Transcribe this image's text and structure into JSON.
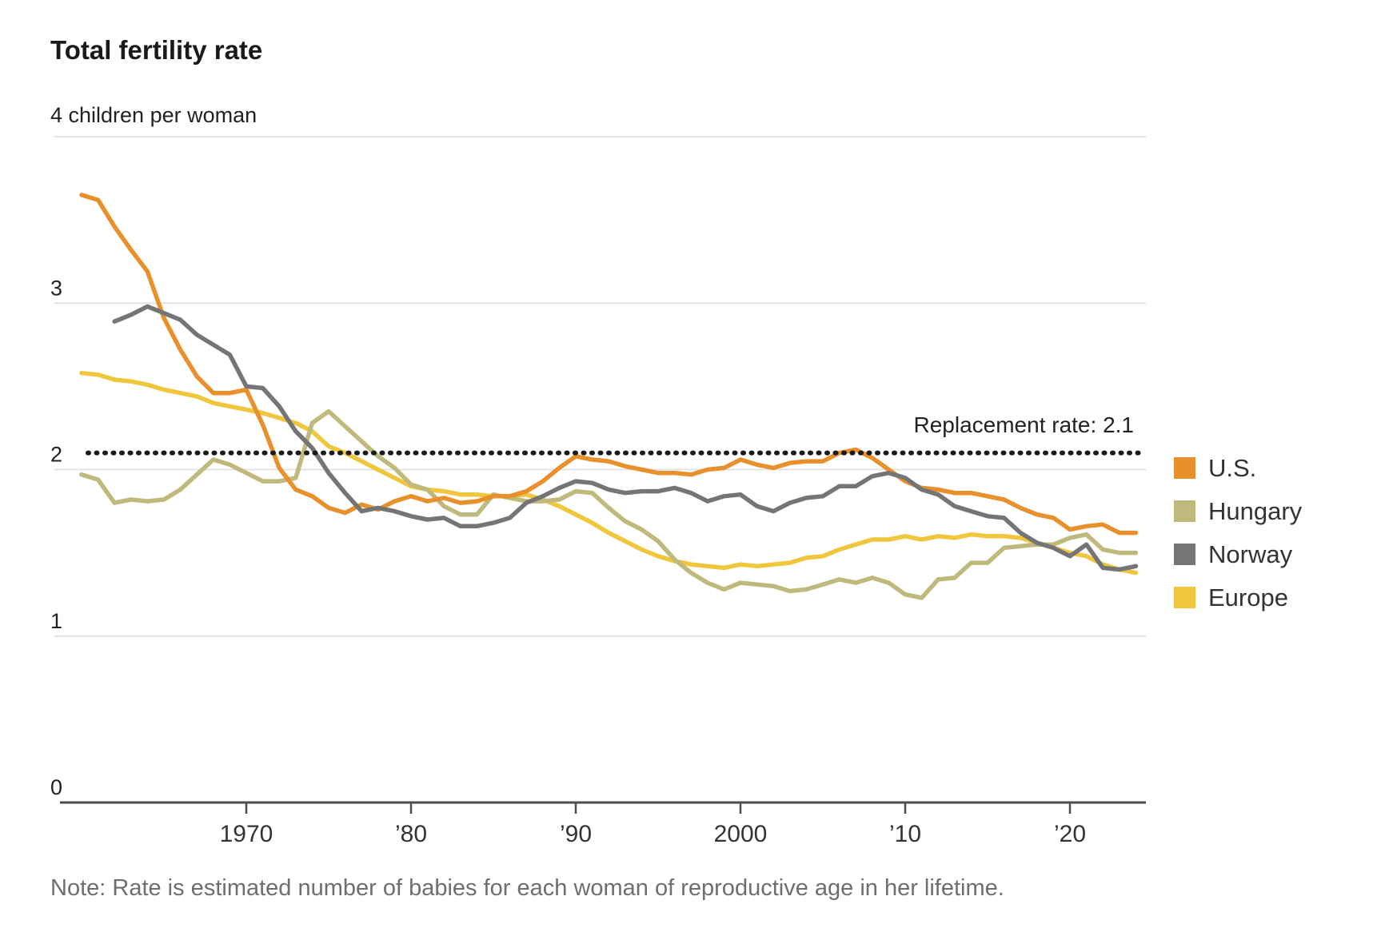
{
  "chart_data": {
    "type": "line",
    "title": "Total fertility rate",
    "unit_label": "4 children per woman",
    "note": "Note: Rate is estimated number of babies for each woman of reproductive age in her lifetime.",
    "x": [
      1960,
      1961,
      1962,
      1963,
      1964,
      1965,
      1966,
      1967,
      1968,
      1969,
      1970,
      1971,
      1972,
      1973,
      1974,
      1975,
      1976,
      1977,
      1978,
      1979,
      1980,
      1981,
      1982,
      1983,
      1984,
      1985,
      1986,
      1987,
      1988,
      1989,
      1990,
      1991,
      1992,
      1993,
      1994,
      1995,
      1996,
      1997,
      1998,
      1999,
      2000,
      2001,
      2002,
      2003,
      2004,
      2005,
      2006,
      2007,
      2008,
      2009,
      2010,
      2011,
      2012,
      2013,
      2014,
      2015,
      2016,
      2017,
      2018,
      2019,
      2020,
      2021,
      2022,
      2023,
      2024
    ],
    "series": [
      {
        "name": "U.S.",
        "color": "#E8912C",
        "values": [
          3.65,
          3.62,
          3.46,
          3.32,
          3.19,
          2.91,
          2.72,
          2.56,
          2.46,
          2.46,
          2.48,
          2.27,
          2.01,
          1.88,
          1.84,
          1.77,
          1.74,
          1.79,
          1.76,
          1.81,
          1.84,
          1.81,
          1.83,
          1.8,
          1.81,
          1.84,
          1.84,
          1.87,
          1.93,
          2.01,
          2.08,
          2.06,
          2.05,
          2.02,
          2.0,
          1.98,
          1.98,
          1.97,
          2.0,
          2.01,
          2.06,
          2.03,
          2.01,
          2.04,
          2.05,
          2.05,
          2.1,
          2.12,
          2.07,
          2.0,
          1.93,
          1.89,
          1.88,
          1.86,
          1.86,
          1.84,
          1.82,
          1.77,
          1.73,
          1.71,
          1.64,
          1.66,
          1.67,
          1.62,
          1.62
        ]
      },
      {
        "name": "Hungary",
        "color": "#BFB97C",
        "values": [
          1.97,
          1.94,
          1.8,
          1.82,
          1.81,
          1.82,
          1.88,
          1.97,
          2.06,
          2.03,
          1.98,
          1.93,
          1.93,
          1.95,
          2.28,
          2.35,
          2.26,
          2.17,
          2.08,
          2.01,
          1.91,
          1.88,
          1.78,
          1.73,
          1.73,
          1.85,
          1.83,
          1.81,
          1.81,
          1.82,
          1.87,
          1.86,
          1.77,
          1.69,
          1.64,
          1.57,
          1.46,
          1.38,
          1.32,
          1.28,
          1.32,
          1.31,
          1.3,
          1.27,
          1.28,
          1.31,
          1.34,
          1.32,
          1.35,
          1.32,
          1.25,
          1.23,
          1.34,
          1.35,
          1.44,
          1.44,
          1.53,
          1.54,
          1.55,
          1.55,
          1.59,
          1.61,
          1.52,
          1.5,
          1.5
        ]
      },
      {
        "name": "Norway",
        "color": "#757575",
        "values": [
          null,
          null,
          2.89,
          2.93,
          2.98,
          2.94,
          2.9,
          2.81,
          2.75,
          2.69,
          2.5,
          2.49,
          2.38,
          2.23,
          2.13,
          1.98,
          1.86,
          1.75,
          1.77,
          1.75,
          1.72,
          1.7,
          1.71,
          1.66,
          1.66,
          1.68,
          1.71,
          1.8,
          1.84,
          1.89,
          1.93,
          1.92,
          1.88,
          1.86,
          1.87,
          1.87,
          1.89,
          1.86,
          1.81,
          1.84,
          1.85,
          1.78,
          1.75,
          1.8,
          1.83,
          1.84,
          1.9,
          1.9,
          1.96,
          1.98,
          1.95,
          1.88,
          1.85,
          1.78,
          1.75,
          1.72,
          1.71,
          1.62,
          1.56,
          1.53,
          1.48,
          1.55,
          1.41,
          1.4,
          1.42
        ]
      },
      {
        "name": "Europe",
        "color": "#EFC63C",
        "values": [
          2.58,
          2.57,
          2.54,
          2.53,
          2.51,
          2.48,
          2.46,
          2.44,
          2.4,
          2.38,
          2.36,
          2.34,
          2.31,
          2.28,
          2.23,
          2.14,
          2.1,
          2.05,
          2.0,
          1.95,
          1.9,
          1.88,
          1.87,
          1.85,
          1.85,
          1.84,
          1.84,
          1.85,
          1.82,
          1.78,
          1.73,
          1.68,
          1.62,
          1.57,
          1.52,
          1.48,
          1.45,
          1.43,
          1.42,
          1.41,
          1.43,
          1.42,
          1.43,
          1.44,
          1.47,
          1.48,
          1.52,
          1.55,
          1.58,
          1.58,
          1.6,
          1.58,
          1.6,
          1.59,
          1.61,
          1.6,
          1.6,
          1.59,
          1.56,
          1.53,
          1.5,
          1.48,
          1.43,
          1.4,
          1.38
        ]
      }
    ],
    "reference_line": {
      "label": "Replacement rate: 2.1",
      "value": 2.1
    },
    "y_axis": {
      "min": 0,
      "max": 4,
      "ticks": [
        0,
        1,
        2,
        3
      ],
      "top_tick": 4,
      "grid": true
    },
    "x_axis": {
      "ticks": [
        1970,
        1980,
        1990,
        2000,
        2010,
        2020
      ],
      "tick_labels": [
        "1970",
        "’80",
        "’90",
        "2000",
        "’10",
        "’20"
      ]
    },
    "legend_position": "right",
    "colors": {
      "grid": "#E3E3E3",
      "axis": "#4d4d4d",
      "reference": "#1a1a1a",
      "title_text": "#1a1a1a",
      "tick_text": "#333333",
      "note_text": "#6e6e6e"
    }
  }
}
